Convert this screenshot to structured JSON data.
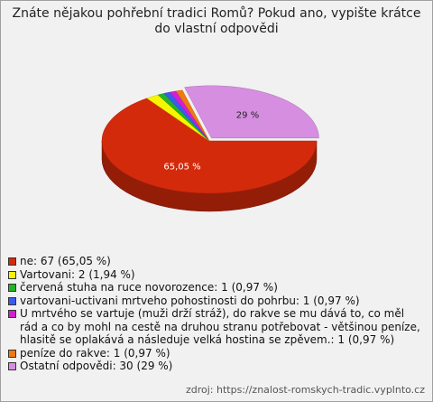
{
  "chart_data": {
    "type": "pie",
    "title": "Znáte nějakou pohřební tradici Romů? Pokud ano, vypište krátce do vlastní odpovědi",
    "categories": [
      "ne: 67 (65,05 %)",
      "Vartovani: 2 (1,94 %)",
      "červená stuha na ruce novorozence: 1 (0,97 %)",
      "vartovani-uctivani mrtveho pohostinosti do pohrbu: 1 (0,97 %)",
      "U mrtvého se vartuje (muži drží stráž), do rakve se mu dává to, co měl rád a co by mohl na cestě na druhou stranu potřebovat - většinou peníze, hlasitě se oplakává a následuje velká hostina se zpěvem.: 1 (0,97 %)",
      "peníze do rakve: 1 (0,97 %)",
      "Ostatní odpovědi: 30 (29 %)"
    ],
    "values": [
      65.05,
      1.94,
      0.97,
      0.97,
      0.97,
      0.97,
      29
    ],
    "value_labels": [
      "65,05 %",
      null,
      null,
      null,
      null,
      null,
      "29 %"
    ],
    "colors": [
      "#d42a0c",
      "#f6f600",
      "#22b422",
      "#3b5bf0",
      "#d21fd2",
      "#f07a10",
      "#d68ee0"
    ],
    "source": "zdroj: https://znalost-romskych-tradic.vyplnto.cz"
  }
}
